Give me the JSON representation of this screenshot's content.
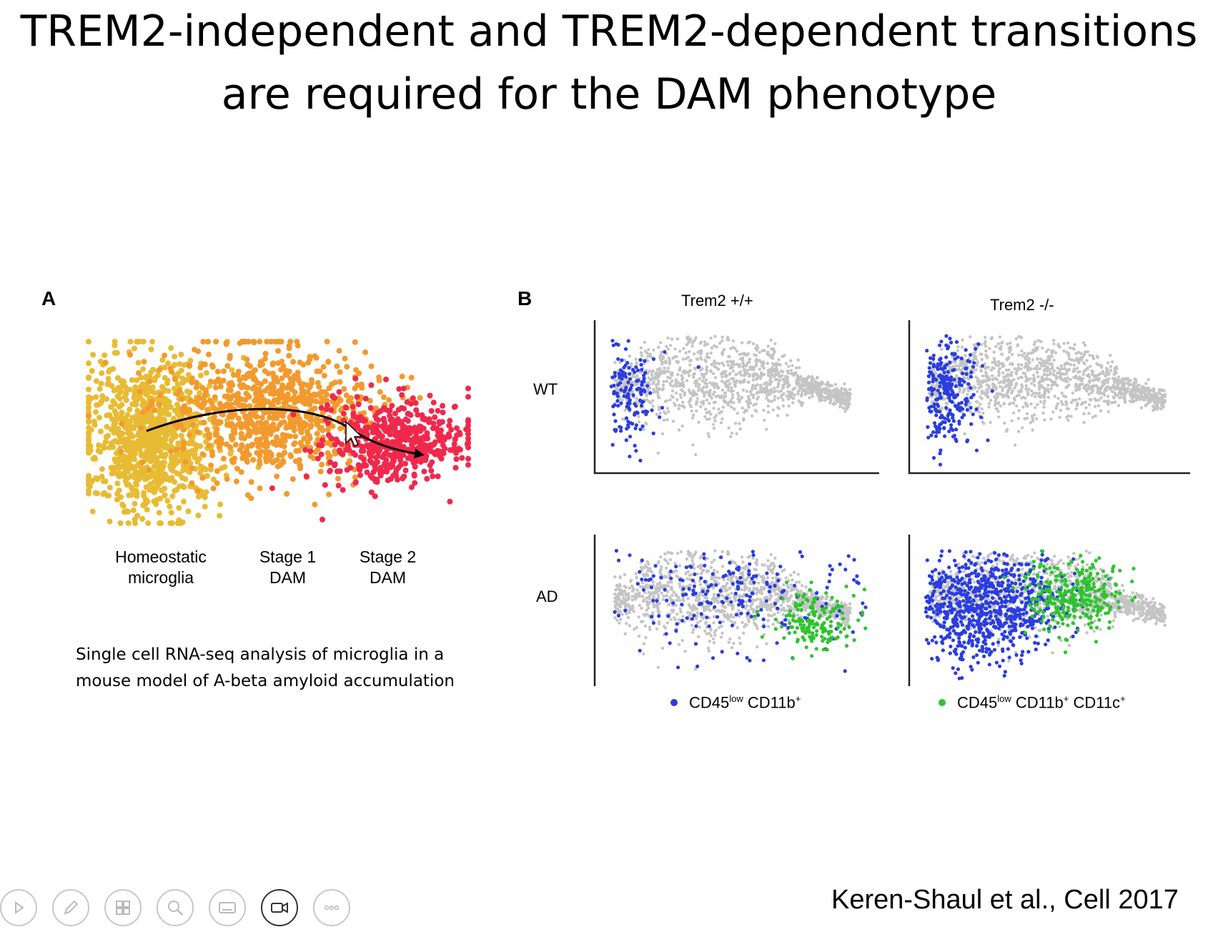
{
  "slide": {
    "title_line1": "TREM2-independent and TREM2-dependent transitions",
    "title_line2": "are required for the DAM phenotype",
    "citation": "Keren-Shaul et al., Cell 2017"
  },
  "panel_a": {
    "letter": "A",
    "stages": [
      {
        "line1": "Homeostatic",
        "line2": "microglia"
      },
      {
        "line1": "Stage 1",
        "line2": "DAM"
      },
      {
        "line1": "Stage 2",
        "line2": "DAM"
      }
    ],
    "caption_line1": "Single cell RNA-seq analysis of microglia in a",
    "caption_line2": "mouse model of A-beta amyloid accumulation",
    "colors": {
      "homeostatic": "#e8bb34",
      "stage1": "#f39a2e",
      "stage2": "#f0294c"
    }
  },
  "panel_b": {
    "letter": "B",
    "columns": [
      "Trem2 +/+",
      "Trem2 -/-"
    ],
    "rows": [
      "WT",
      "AD"
    ],
    "legend": [
      {
        "color": "#2a3de0",
        "base": "CD45",
        "sup1": "low",
        "mid1": " CD11b",
        "sup2": "+",
        "mid2": "",
        "sup3": ""
      },
      {
        "color": "#2ec42e",
        "base": "CD45",
        "sup1": "low",
        "mid1": " CD11b",
        "sup2": "+",
        "mid2": " CD11c",
        "sup3": "+"
      }
    ],
    "colors": {
      "background": "#c4c4c4",
      "blue": "#2a3de0",
      "green": "#2ec42e"
    }
  },
  "toolbar": {
    "icons": [
      "play-icon",
      "pen-icon",
      "slides-icon",
      "zoom-icon",
      "subtitles-icon",
      "camera-icon",
      "more-icon"
    ]
  }
}
